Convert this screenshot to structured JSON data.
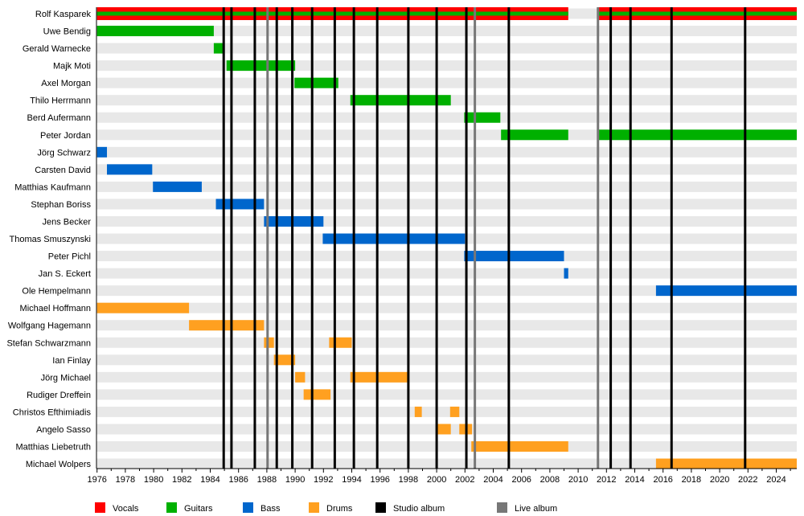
{
  "chart_data": {
    "type": "timeline",
    "title": "",
    "xlabel": "",
    "ylabel": "",
    "xlim": [
      1976,
      2025.45
    ],
    "x_ticks": [
      1976,
      1978,
      1980,
      1982,
      1984,
      1986,
      1988,
      1990,
      1992,
      1994,
      1996,
      1998,
      2000,
      2002,
      2004,
      2006,
      2008,
      2010,
      2012,
      2014,
      2016,
      2018,
      2020,
      2022,
      2024
    ],
    "colors": {
      "Vocals": "#ff0000",
      "Guitars": "#00b000",
      "Bass": "#0066cc",
      "Drums": "#ffa020",
      "Studio album": "#000000",
      "Live album": "#777777"
    },
    "legend": [
      "Vocals",
      "Guitars",
      "Bass",
      "Drums",
      "Studio album",
      "Live album"
    ],
    "legend_position": "bottom",
    "members": [
      {
        "name": "Rolf Kasparek",
        "role": "Vocals",
        "second_role": "Guitars",
        "periods": [
          [
            1976,
            2009.3
          ],
          [
            2011.4,
            2025.45
          ]
        ]
      },
      {
        "name": "Uwe Bendig",
        "role": "Guitars",
        "periods": [
          [
            1976,
            1984.25
          ]
        ]
      },
      {
        "name": "Gerald Warnecke",
        "role": "Guitars",
        "periods": [
          [
            1984.25,
            1984.95
          ]
        ]
      },
      {
        "name": "Majk Moti",
        "role": "Guitars",
        "periods": [
          [
            1985.15,
            1990.0
          ]
        ]
      },
      {
        "name": "Axel Morgan",
        "role": "Guitars",
        "periods": [
          [
            1989.95,
            1993.05
          ]
        ]
      },
      {
        "name": "Thilo Herrmann",
        "role": "Guitars",
        "periods": [
          [
            1993.9,
            2001.0
          ]
        ]
      },
      {
        "name": "Berd Aufermann",
        "role": "Guitars",
        "periods": [
          [
            2001.95,
            2004.5
          ]
        ]
      },
      {
        "name": "Peter Jordan",
        "role": "Guitars",
        "periods": [
          [
            2004.55,
            2009.3
          ],
          [
            2011.4,
            2025.45
          ]
        ]
      },
      {
        "name": "Jörg Schwarz",
        "role": "Bass",
        "periods": [
          [
            1976,
            1976.7
          ]
        ]
      },
      {
        "name": "Carsten David",
        "role": "Bass",
        "periods": [
          [
            1976.7,
            1979.9
          ]
        ]
      },
      {
        "name": "Matthias Kaufmann",
        "role": "Bass",
        "periods": [
          [
            1979.95,
            1983.4
          ]
        ]
      },
      {
        "name": "Stephan Boriss",
        "role": "Bass",
        "periods": [
          [
            1984.4,
            1987.8
          ]
        ]
      },
      {
        "name": "Jens Becker",
        "role": "Bass",
        "periods": [
          [
            1987.8,
            1992.0
          ]
        ]
      },
      {
        "name": "Thomas Smuszynski",
        "role": "Bass",
        "periods": [
          [
            1991.95,
            2002.0
          ]
        ]
      },
      {
        "name": "Peter Pichl",
        "role": "Bass",
        "periods": [
          [
            2001.95,
            2009.0
          ]
        ]
      },
      {
        "name": "Jan S. Eckert",
        "role": "Bass",
        "periods": [
          [
            2009.0,
            2009.3
          ]
        ]
      },
      {
        "name": "Ole Hempelmann",
        "role": "Bass",
        "periods": [
          [
            2015.5,
            2025.45
          ]
        ]
      },
      {
        "name": "Michael Hoffmann",
        "role": "Drums",
        "periods": [
          [
            1976,
            1982.5
          ]
        ]
      },
      {
        "name": "Wolfgang Hagemann",
        "role": "Drums",
        "periods": [
          [
            1982.5,
            1987.8
          ]
        ]
      },
      {
        "name": "Stefan Schwarzmann",
        "role": "Drums",
        "periods": [
          [
            1987.8,
            1988.5
          ],
          [
            1992.4,
            1994.0
          ]
        ]
      },
      {
        "name": "Ian Finlay",
        "role": "Drums",
        "periods": [
          [
            1988.5,
            1990.0
          ]
        ]
      },
      {
        "name": "Jörg Michael",
        "role": "Drums",
        "periods": [
          [
            1990.0,
            1990.7
          ],
          [
            1993.9,
            1998.05
          ]
        ]
      },
      {
        "name": "Rudiger Dreffein",
        "role": "Drums",
        "periods": [
          [
            1990.6,
            1992.5
          ]
        ]
      },
      {
        "name": "Christos Efthimiadis",
        "role": "Drums",
        "periods": [
          [
            1998.45,
            1998.95
          ],
          [
            2000.95,
            2001.6
          ]
        ]
      },
      {
        "name": "Angelo Sasso",
        "role": "Drums",
        "periods": [
          [
            1999.95,
            2001.0
          ],
          [
            2001.6,
            2002.5
          ]
        ]
      },
      {
        "name": "Matthias Liebetruth",
        "role": "Drums",
        "periods": [
          [
            2002.45,
            2009.3
          ]
        ]
      },
      {
        "name": "Michael Wolpers",
        "role": "Drums",
        "periods": [
          [
            2015.5,
            2025.45
          ]
        ]
      }
    ],
    "studio_albums": [
      1984.95,
      1985.5,
      1987.15,
      1988.7,
      1989.8,
      1991.2,
      1992.8,
      1994.15,
      1995.8,
      1998.0,
      2000.0,
      2002.1,
      2005.1,
      2012.3,
      2013.7,
      2016.6,
      2021.8
    ],
    "live_albums": [
      1988.05,
      2002.7,
      2011.4
    ]
  }
}
